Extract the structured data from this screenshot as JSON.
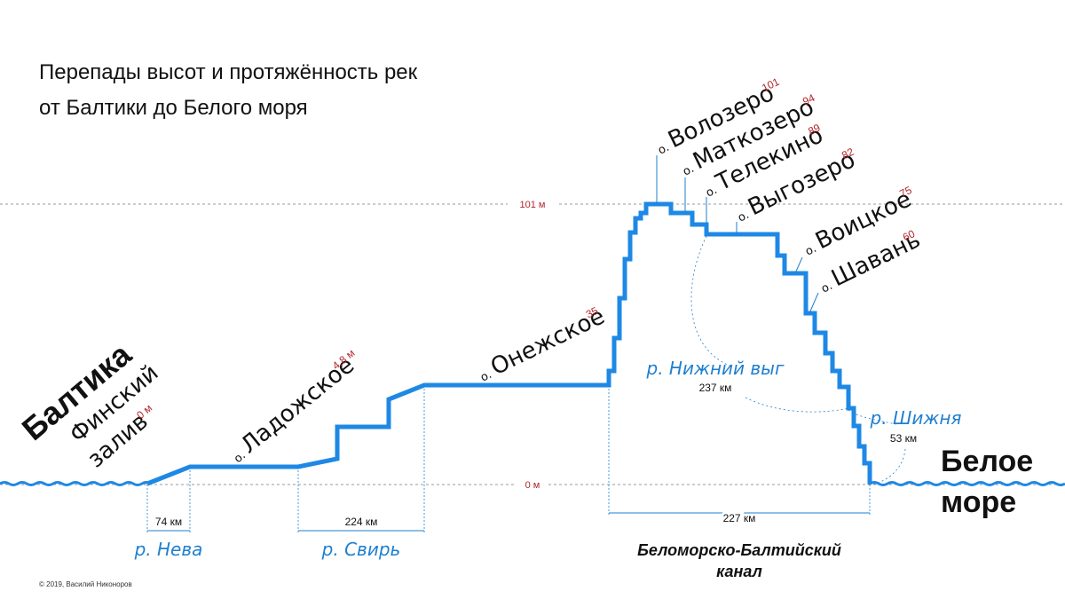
{
  "title": {
    "line1": "Перепады высот и протяжённость рек",
    "line2": "от Балтики до Белого моря"
  },
  "levels": {
    "top": "101 м",
    "zero": "0 м"
  },
  "baltic": {
    "name": "Балтика",
    "gulf_line1": "Финский",
    "gulf_line2": "залив",
    "alt": "0 м"
  },
  "sea": {
    "line1": "Белое",
    "line2": "море"
  },
  "lakes": [
    {
      "prefix": "о.",
      "name": "Ладожское",
      "alt": "4,8 м"
    },
    {
      "prefix": "о.",
      "name": "Онежское",
      "alt": "35"
    },
    {
      "prefix": "о.",
      "name": "Волозеро",
      "alt": "101"
    },
    {
      "prefix": "о.",
      "name": "Маткозеро",
      "alt": "94"
    },
    {
      "prefix": "о.",
      "name": "Телекино",
      "alt": "89"
    },
    {
      "prefix": "о.",
      "name": "Выгозеро",
      "alt": "82"
    },
    {
      "prefix": "о.",
      "name": "Воицкое",
      "alt": "75"
    },
    {
      "prefix": "о.",
      "name": "Шавань",
      "alt": "60"
    }
  ],
  "rivers": [
    {
      "name": "р. Нева",
      "length": "74 км"
    },
    {
      "name": "р. Свирь",
      "length": "224 км"
    },
    {
      "name": "р. Нижний выг",
      "length": "237 км"
    },
    {
      "name": "р. Шижня",
      "length": "53 км"
    }
  ],
  "canal": {
    "line1": "Беломорско-Балтийский",
    "line2": "канал",
    "length": "227 км"
  },
  "copyright": "© 2019, Василий Никоноров",
  "colors": {
    "profile": "#1e88e5",
    "river_text": "#1f7fcf",
    "altitude_text": "#b3262b"
  },
  "chart_data": {
    "type": "line",
    "title": "Перепады высот и протяжённость рек от Балтики до Белого моря",
    "ylabel": "",
    "ylim": [
      0,
      101
    ],
    "points": [
      {
        "name": "Финский залив",
        "altitude_m": 0
      },
      {
        "name": "Ладожское",
        "altitude_m": 4.8
      },
      {
        "name": "Онежское",
        "altitude_m": 35
      },
      {
        "name": "Волозеро",
        "altitude_m": 101
      },
      {
        "name": "Маткозеро",
        "altitude_m": 94
      },
      {
        "name": "Телекино",
        "altitude_m": 89
      },
      {
        "name": "Выгозеро",
        "altitude_m": 82
      },
      {
        "name": "Воицкое",
        "altitude_m": 75
      },
      {
        "name": "Шавань",
        "altitude_m": 60
      },
      {
        "name": "Белое море",
        "altitude_m": 0
      }
    ],
    "segments": [
      {
        "name": "р. Нева",
        "length_km": 74
      },
      {
        "name": "р. Свирь",
        "length_km": 224
      },
      {
        "name": "Беломорско-Балтийский канал",
        "length_km": 227
      },
      {
        "name": "р. Нижний выг",
        "length_km": 237
      },
      {
        "name": "р. Шижня",
        "length_km": 53
      }
    ]
  }
}
